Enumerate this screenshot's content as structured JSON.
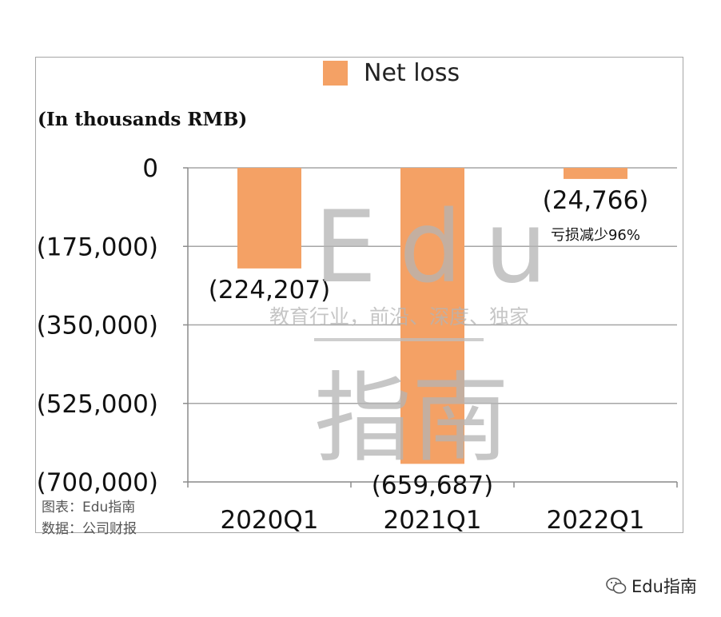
{
  "chart_data": {
    "type": "bar",
    "categories": [
      "2020Q1",
      "2021Q1",
      "2022Q1"
    ],
    "series": [
      {
        "name": "Net loss",
        "values": [
          -224207,
          -659687,
          -24766
        ],
        "color": "#f4a165"
      }
    ],
    "data_labels": [
      "(224,207)",
      "(659,687)",
      "(24,766)"
    ],
    "annotation": "亏损减少96%",
    "ylabel": "(In thousands RMB)",
    "yticks": [
      0,
      -175000,
      -350000,
      -525000,
      -700000
    ],
    "ytick_labels": [
      "0",
      "(175,000)",
      "(350,000)",
      "(525,000)",
      "(700,000)"
    ],
    "ylim": [
      -700000,
      0
    ],
    "grid": true,
    "legend": "top"
  },
  "legend": {
    "label": "Net loss"
  },
  "footer": {
    "line1": "图表：Edu指南",
    "line2": "数据：公司财报"
  },
  "watermark": {
    "big": "Edu",
    "line": "教育行业，前沿、深度、独家",
    "cn": "指南"
  },
  "brand": {
    "label": "Edu指南"
  },
  "colors": {
    "bar": "#f4a165",
    "grid": "#a6a6a6",
    "axis": "#8c8c8c"
  }
}
